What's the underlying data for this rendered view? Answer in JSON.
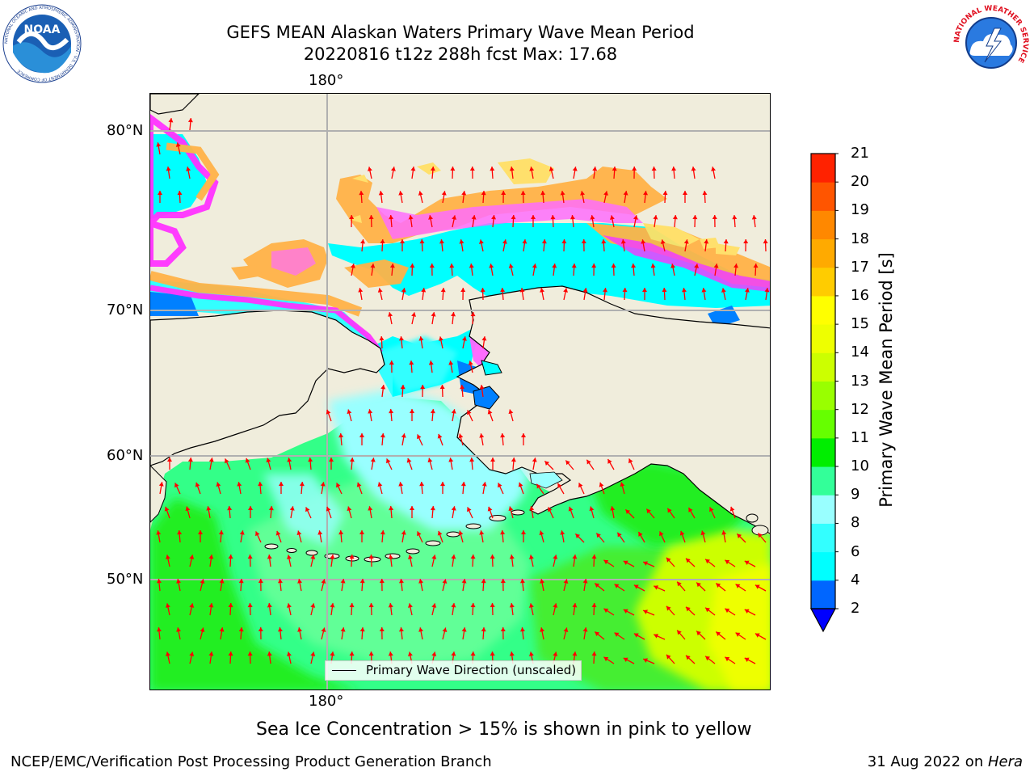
{
  "title": {
    "line1": "GEFS MEAN Alaskan Waters Primary Wave Mean Period",
    "line2": "20220816 t12z 288h fcst   Max: 17.68"
  },
  "map": {
    "lon_label_top": "180°",
    "lon_label_bottom": "180°",
    "lat_labels": [
      "80°N",
      "70°N",
      "60°N",
      "50°N"
    ],
    "legend_label": "Primary Wave Direction (unscaled)",
    "colors": {
      "land": "#f0eddc",
      "gridline": "#b0b0b0",
      "arrow": "#ff0000",
      "ice_pink": "#ff33ff",
      "ice_orange": "#ffb347",
      "ice_yellow": "#ffe066"
    }
  },
  "colorbar": {
    "title": "Primary Wave Mean Period [s]",
    "ticks": [
      "2",
      "4",
      "6",
      "8",
      "9",
      "10",
      "11",
      "12",
      "13",
      "14",
      "15",
      "16",
      "17",
      "18",
      "19",
      "20",
      "21"
    ],
    "colors": [
      "#0066ff",
      "#00ffff",
      "#33ffff",
      "#99ffff",
      "#33ff99",
      "#00ee00",
      "#66ff00",
      "#99ff00",
      "#ccff00",
      "#eeff00",
      "#ffff00",
      "#ffcc00",
      "#ffaa00",
      "#ff8800",
      "#ff5500",
      "#ff2200"
    ],
    "under_color": "#0000ff"
  },
  "ice_note": "Sea Ice Concentration > 15% is shown in pink to yellow",
  "footer": {
    "left": "NCEP/EMC/Verification Post Processing Product Generation Branch",
    "date": "31 Aug 2022 on ",
    "machine": "Hera"
  },
  "logos": {
    "left": "NOAA",
    "right_ring": "NATIONAL WEATHER SERVICE",
    "left_ring": "NATIONAL OCEANIC AND ATMOSPHERIC ADMINISTRATION · U.S. DEPARTMENT OF COMMERCE"
  }
}
